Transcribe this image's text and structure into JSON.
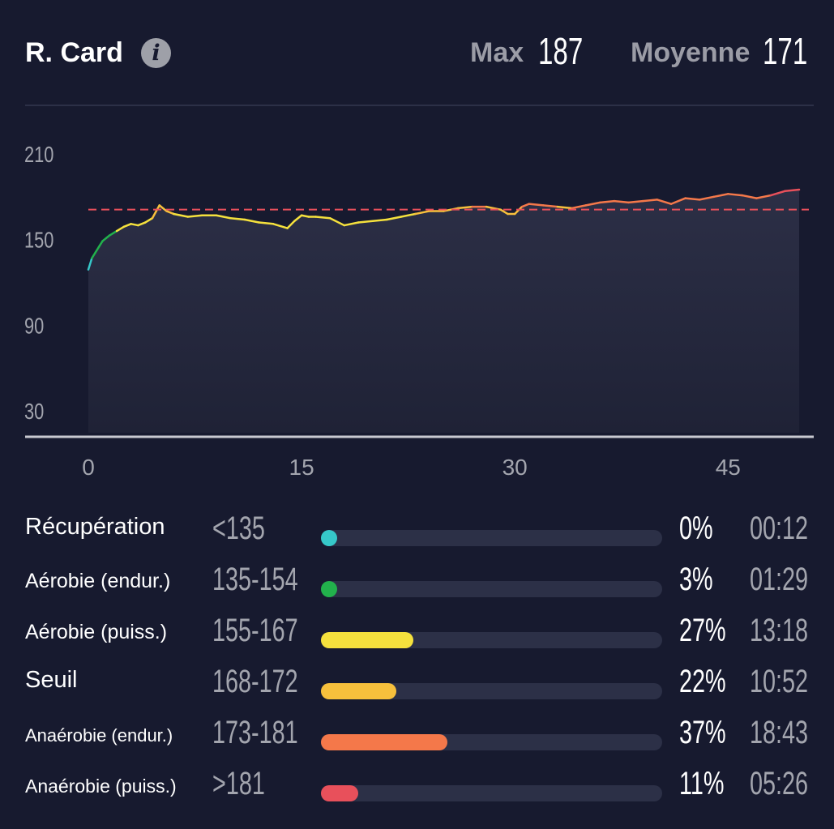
{
  "header": {
    "title": "R. Card",
    "info_icon": "info-icon",
    "max_label": "Max",
    "max_value": "187",
    "avg_label": "Moyenne",
    "avg_value": "171"
  },
  "chart_data": {
    "type": "line",
    "title": "",
    "xlabel": "",
    "ylabel": "",
    "y_ticks": [
      "210",
      "150",
      "90",
      "30"
    ],
    "x_ticks": [
      "0",
      "15",
      "30",
      "45"
    ],
    "xlim": [
      0,
      50
    ],
    "ylim": [
      30,
      210
    ],
    "reference_line": {
      "value": 171,
      "style": "dashed",
      "color": "#e8505b"
    },
    "grid": false,
    "series": [
      {
        "x": [
          0,
          0.25,
          0.5,
          0.75,
          1,
          1.25,
          1.5,
          2,
          2.5,
          3,
          3.5,
          4,
          4.5,
          5,
          5.5,
          6,
          7,
          8,
          9,
          10,
          11,
          12,
          13,
          14,
          14.5,
          15,
          15.5,
          16,
          17,
          18,
          19,
          20,
          21,
          22,
          23,
          24,
          25,
          26,
          27,
          28,
          29,
          29.5,
          30,
          30.5,
          31,
          32,
          33,
          34,
          35,
          36,
          37,
          38,
          39,
          40,
          41,
          42,
          43,
          44,
          45,
          46,
          47,
          48,
          49,
          50
        ],
        "y": [
          129,
          137,
          141,
          145,
          149,
          151,
          153,
          156,
          159,
          161,
          160,
          162,
          165,
          174,
          170,
          168,
          166,
          167,
          167,
          165,
          164,
          162,
          161,
          158,
          163,
          167,
          166,
          166,
          165,
          160,
          162,
          163,
          164,
          166,
          168,
          170,
          170,
          172,
          173,
          173,
          171,
          168,
          168,
          173,
          175,
          174,
          173,
          172,
          174,
          176,
          177,
          176,
          177,
          178,
          175,
          179,
          178,
          180,
          182,
          181,
          179,
          181,
          184,
          185
        ]
      }
    ],
    "color_scale": [
      {
        "from": 0,
        "to": 135,
        "color": "#36c8c9"
      },
      {
        "from": 135,
        "to": 155,
        "color": "#22b14c"
      },
      {
        "from": 155,
        "to": 168,
        "color": "#f5e13d"
      },
      {
        "from": 168,
        "to": 173,
        "color": "#f7c03c"
      },
      {
        "from": 173,
        "to": 182,
        "color": "#f4784a"
      },
      {
        "from": 182,
        "to": 999,
        "color": "#e8505b"
      }
    ]
  },
  "zones": [
    {
      "name": "Récupération",
      "range": "<135",
      "percent": "0%",
      "time": "00:12",
      "fraction": 0.0,
      "color": "#36c8c9"
    },
    {
      "name": "Aérobie (endur.)",
      "range": "135-154",
      "percent": "3%",
      "time": "01:29",
      "fraction": 0.03,
      "color": "#22b14c"
    },
    {
      "name": "Aérobie (puiss.)",
      "range": "155-167",
      "percent": "27%",
      "time": "13:18",
      "fraction": 0.27,
      "color": "#f5e13d"
    },
    {
      "name": "Seuil",
      "range": "168-172",
      "percent": "22%",
      "time": "10:52",
      "fraction": 0.22,
      "color": "#f7c03c"
    },
    {
      "name": "Anaérobie (endur.)",
      "range": "173-181",
      "percent": "37%",
      "time": "18:43",
      "fraction": 0.37,
      "color": "#f4784a"
    },
    {
      "name": "Anaérobie (puiss.)",
      "range": ">181",
      "percent": "11%",
      "time": "05:26",
      "fraction": 0.11,
      "color": "#e8505b"
    }
  ]
}
